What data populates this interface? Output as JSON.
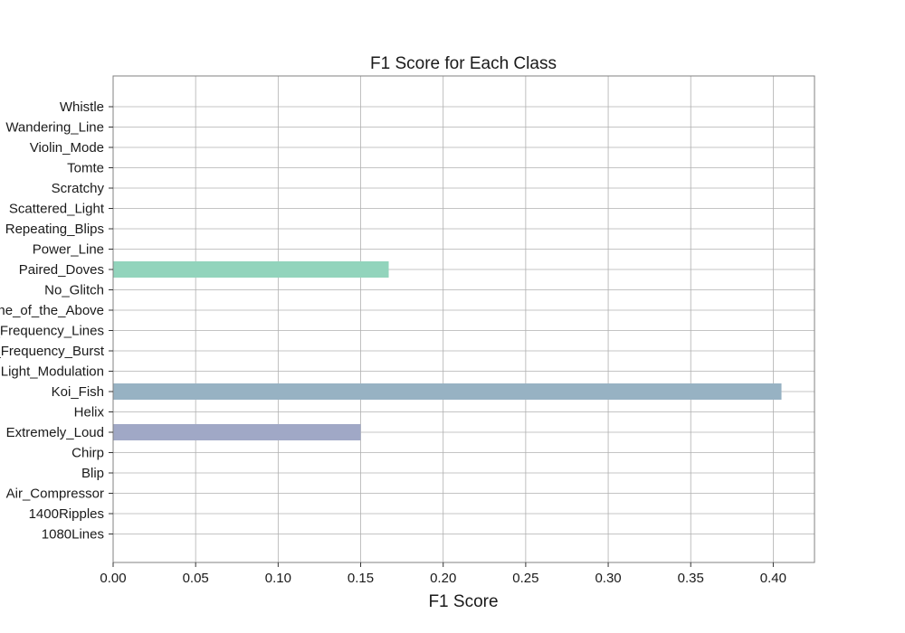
{
  "chart_data": {
    "type": "bar",
    "orientation": "horizontal",
    "title": "F1 Score for Each Class",
    "xlabel": "F1 Score",
    "ylabel": "",
    "xlim": [
      0,
      0.425
    ],
    "xticks": [
      "0.00",
      "0.05",
      "0.10",
      "0.15",
      "0.20",
      "0.25",
      "0.30",
      "0.35",
      "0.40"
    ],
    "grid": true,
    "categories": [
      "Whistle",
      "Wandering_Line",
      "Violin_Mode",
      "Tomte",
      "Scratchy",
      "Scattered_Light",
      "Repeating_Blips",
      "Power_Line",
      "Paired_Doves",
      "No_Glitch",
      "None_of_the_Above",
      "Low_Frequency_Lines",
      "Low_Frequency_Burst",
      "Light_Modulation",
      "Koi_Fish",
      "Helix",
      "Extremely_Loud",
      "Chirp",
      "Blip",
      "Air_Compressor",
      "1400Ripples",
      "1080Lines"
    ],
    "values": [
      0,
      0,
      0,
      0,
      0,
      0,
      0,
      0,
      0.167,
      0,
      0,
      0,
      0,
      0,
      0.405,
      0,
      0.15,
      0,
      0,
      0,
      0,
      0
    ],
    "colors": {
      "Paired_Doves": "#92d4bc",
      "Koi_Fish": "#97b2c3",
      "Extremely_Loud": "#a0a8c6"
    }
  }
}
